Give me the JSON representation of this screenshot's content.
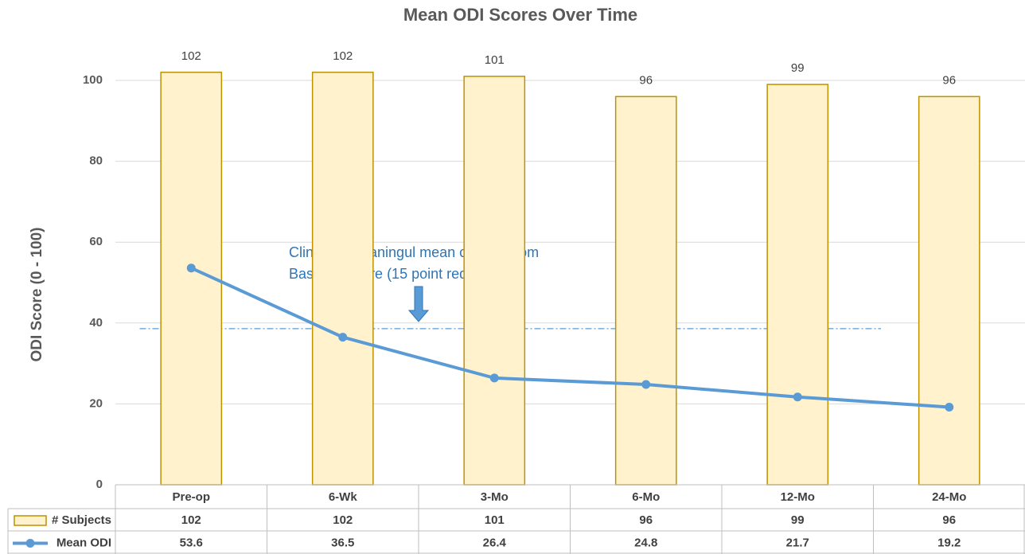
{
  "chart_data": {
    "type": "bar",
    "title": "Mean ODI Scores Over Time",
    "y_label": "ODI Score (0 - 100)",
    "annotation": [
      "Clinically meaningul mean change from",
      "Baseline  score (15 point reduction)"
    ],
    "reference_line": 38.6,
    "categories": [
      "Pre-op",
      "6-Wk",
      "3-Mo",
      "6-Mo",
      "12-Mo",
      "24-Mo"
    ],
    "series": [
      {
        "name": "# Subjects",
        "type": "bar",
        "color": "#fff2cc",
        "stroke": "#bf9000",
        "values": [
          102,
          102,
          101,
          96,
          99,
          96
        ]
      },
      {
        "name": "Mean ODI",
        "type": "line",
        "color": "#5b9bd5",
        "values": [
          53.6,
          36.5,
          26.4,
          24.8,
          21.7,
          19.2
        ]
      }
    ],
    "ylim": [
      0,
      110
    ],
    "yticks": [
      0,
      20,
      40,
      60,
      80,
      100
    ],
    "grid": true,
    "data_table": true
  }
}
